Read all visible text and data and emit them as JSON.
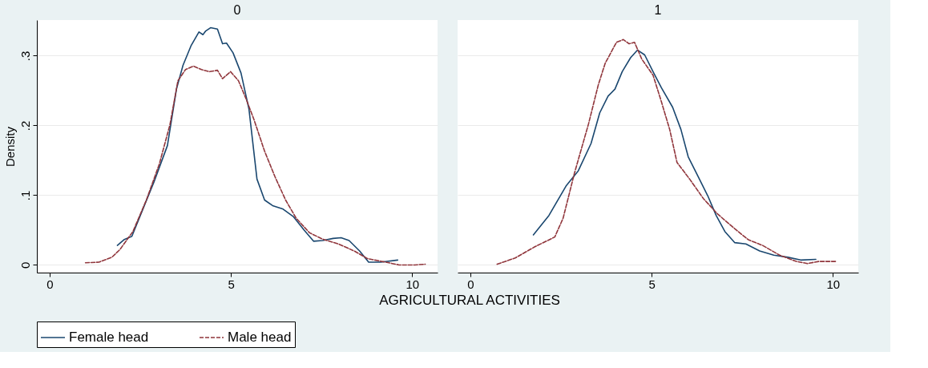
{
  "chart_data": [
    {
      "type": "line",
      "title": "0",
      "ylabel": "Density",
      "xlabel": "AGRICULTURAL ACTIVITIES",
      "xlim": [
        -0.35,
        10.7
      ],
      "ylim": [
        -0.011,
        0.351
      ],
      "xticks": [
        0,
        5,
        10
      ],
      "yticks": [
        {
          "value": 0,
          "label": "0"
        },
        {
          "value": 0.1,
          "label": ".1"
        },
        {
          "value": 0.2,
          "label": ".2"
        },
        {
          "value": 0.3,
          "label": ".3"
        }
      ],
      "grid": "y",
      "legend": "bottom",
      "tick_labels": "xy",
      "series": [
        {
          "name": "Female head",
          "color": "#1a476f",
          "line_style": "solid",
          "x": [
            1.87,
            2.05,
            2.27,
            2.59,
            2.88,
            3.25,
            3.5,
            3.68,
            3.9,
            4.12,
            4.23,
            4.3,
            4.44,
            4.63,
            4.77,
            4.88,
            5.06,
            5.28,
            5.5,
            5.72,
            5.93,
            6.15,
            6.44,
            6.73,
            7.02,
            7.28,
            7.53,
            7.82,
            8.04,
            8.26,
            8.55,
            8.8,
            9.13,
            9.6
          ],
          "values": [
            0.028,
            0.036,
            0.041,
            0.082,
            0.119,
            0.171,
            0.252,
            0.286,
            0.314,
            0.334,
            0.33,
            0.335,
            0.34,
            0.338,
            0.317,
            0.318,
            0.304,
            0.275,
            0.223,
            0.123,
            0.093,
            0.085,
            0.08,
            0.069,
            0.05,
            0.034,
            0.035,
            0.038,
            0.039,
            0.035,
            0.02,
            0.004,
            0.004,
            0.007
          ]
        },
        {
          "name": "Male head",
          "color": "#90353b",
          "line_style": "dashed",
          "x": [
            0.99,
            1.36,
            1.72,
            1.94,
            2.3,
            2.67,
            3.03,
            3.32,
            3.54,
            3.75,
            3.97,
            4.19,
            4.41,
            4.63,
            4.77,
            4.99,
            5.21,
            5.42,
            5.64,
            5.93,
            6.22,
            6.51,
            6.8,
            7.17,
            7.53,
            7.97,
            8.4,
            8.77,
            9.27,
            9.64,
            10.07,
            10.36
          ],
          "values": [
            0.003,
            0.004,
            0.011,
            0.022,
            0.048,
            0.093,
            0.145,
            0.201,
            0.264,
            0.28,
            0.285,
            0.28,
            0.277,
            0.279,
            0.267,
            0.277,
            0.264,
            0.238,
            0.208,
            0.163,
            0.126,
            0.093,
            0.067,
            0.046,
            0.037,
            0.03,
            0.02,
            0.009,
            0.004,
            0.0,
            0.0,
            0.001
          ]
        }
      ]
    },
    {
      "type": "line",
      "title": "1",
      "xlim": [
        -0.35,
        10.7
      ],
      "ylim": [
        -0.011,
        0.351
      ],
      "xticks": [
        0,
        5,
        10
      ],
      "yticks": [
        {
          "value": 0,
          "label": "0"
        },
        {
          "value": 0.1,
          "label": ".1"
        },
        {
          "value": 0.2,
          "label": ".2"
        },
        {
          "value": 0.3,
          "label": ".3"
        }
      ],
      "grid": "y",
      "legend": "bottom",
      "tick_labels": "x",
      "series": [
        {
          "name": "Female head",
          "color": "#1a476f",
          "line_style": "solid",
          "x": [
            1.74,
            2.17,
            2.64,
            2.98,
            3.33,
            3.57,
            3.8,
            3.99,
            4.19,
            4.42,
            4.61,
            4.81,
            5.04,
            5.27,
            5.58,
            5.81,
            6.01,
            6.28,
            6.55,
            6.78,
            7.02,
            7.29,
            7.6,
            7.98,
            8.37,
            8.76,
            9.11,
            9.53
          ],
          "values": [
            0.043,
            0.071,
            0.113,
            0.135,
            0.174,
            0.218,
            0.242,
            0.252,
            0.277,
            0.297,
            0.308,
            0.301,
            0.277,
            0.254,
            0.226,
            0.194,
            0.155,
            0.127,
            0.099,
            0.071,
            0.048,
            0.032,
            0.03,
            0.02,
            0.014,
            0.011,
            0.007,
            0.008
          ]
        },
        {
          "name": "Male head",
          "color": "#90353b",
          "line_style": "dashed",
          "x": [
            0.74,
            1.24,
            1.78,
            2.33,
            2.56,
            2.87,
            3.26,
            3.53,
            3.72,
            4.03,
            4.22,
            4.38,
            4.53,
            4.73,
            5.04,
            5.27,
            5.5,
            5.7,
            6.05,
            6.43,
            6.82,
            7.29,
            7.67,
            8.06,
            8.53,
            8.99,
            9.3,
            9.61,
            10.08
          ],
          "values": [
            0.001,
            0.01,
            0.026,
            0.04,
            0.067,
            0.131,
            0.202,
            0.258,
            0.289,
            0.319,
            0.323,
            0.317,
            0.319,
            0.295,
            0.272,
            0.234,
            0.194,
            0.147,
            0.123,
            0.095,
            0.073,
            0.052,
            0.036,
            0.028,
            0.014,
            0.005,
            0.002,
            0.005,
            0.005
          ]
        }
      ]
    }
  ]
}
